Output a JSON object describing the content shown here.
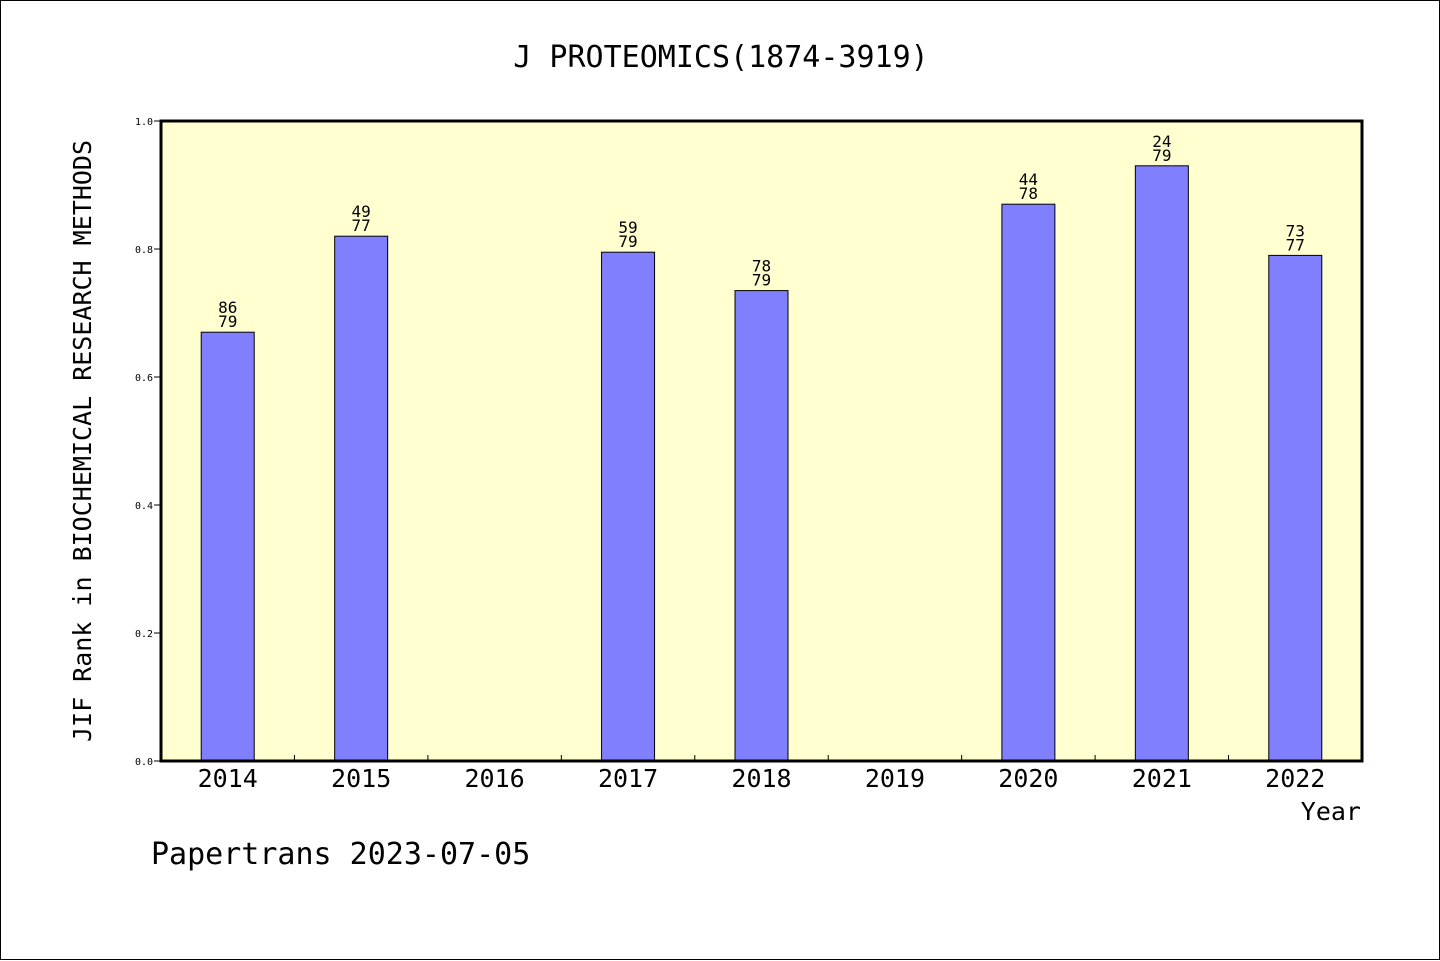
{
  "chart_data": {
    "type": "bar",
    "title": "J PROTEOMICS(1874-3919)",
    "xlabel": "Year",
    "ylabel": "JIF Rank in BIOCHEMICAL RESEARCH METHODS",
    "ylim": [
      0,
      1.0
    ],
    "yticks": [
      "0.0",
      "0.2",
      "0.4",
      "0.6",
      "0.8",
      "1.0"
    ],
    "categories": [
      "2014",
      "2015",
      "2016",
      "2017",
      "2018",
      "2019",
      "2020",
      "2021",
      "2022"
    ],
    "values": [
      0.67,
      0.82,
      null,
      0.795,
      0.735,
      null,
      0.87,
      0.93,
      0.79
    ],
    "labels": [
      {
        "rank": "86",
        "total": "79"
      },
      {
        "rank": "49",
        "total": "77"
      },
      null,
      {
        "rank": "59",
        "total": "79"
      },
      {
        "rank": "78",
        "total": "79"
      },
      null,
      {
        "rank": "44",
        "total": "78"
      },
      {
        "rank": "24",
        "total": "79"
      },
      {
        "rank": "73",
        "total": "77"
      }
    ],
    "grid": false,
    "colors": {
      "plot_background": "#ffffd0",
      "bar": "#8080ff",
      "bar_edge": "#000000"
    }
  },
  "footer": "Papertrans 2023-07-05"
}
